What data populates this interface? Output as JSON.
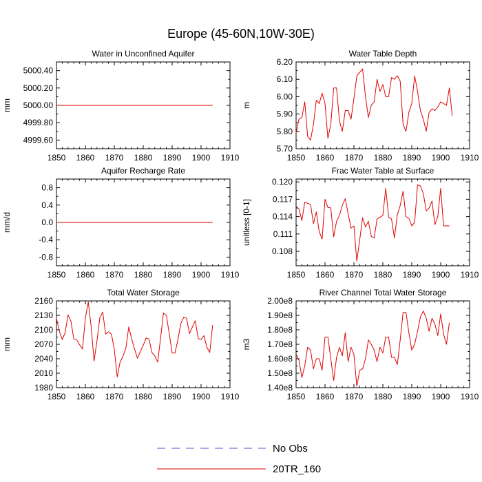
{
  "figure": {
    "title": "Europe (45-60N,10W-30E)"
  },
  "legend": {
    "items": [
      {
        "label": "No Obs",
        "color": "#5050c8",
        "style": "dashed"
      },
      {
        "label": "20TR_160",
        "color": "#e00000",
        "style": "solid"
      }
    ]
  },
  "chart_data": [
    {
      "type": "line",
      "title": "Water in Unconfined Aquifer",
      "ylabel": "mm",
      "xlabel": "",
      "xlim": [
        1850,
        1910
      ],
      "ylim": [
        4999.5,
        5000.5
      ],
      "xticks": [
        1850,
        1860,
        1870,
        1880,
        1890,
        1900,
        1910
      ],
      "yticks": [
        4999.6,
        4999.8,
        5000.0,
        5000.2,
        5000.4
      ],
      "ytick_labels": [
        "4999.60",
        "4999.80",
        "5000.00",
        "5000.20",
        "5000.40"
      ],
      "series": [
        {
          "name": "20TR_160",
          "x": [
            1850,
            1904
          ],
          "values": [
            5000.0,
            5000.0
          ]
        }
      ]
    },
    {
      "type": "line",
      "title": "Water Table Depth",
      "ylabel": "m",
      "xlabel": "",
      "xlim": [
        1850,
        1910
      ],
      "ylim": [
        5.7,
        6.2
      ],
      "xticks": [
        1850,
        1860,
        1870,
        1880,
        1890,
        1900,
        1910
      ],
      "yticks": [
        5.7,
        5.8,
        5.9,
        6.0,
        6.1,
        6.2
      ],
      "ytick_labels": [
        "5.70",
        "5.80",
        "5.90",
        "6.00",
        "6.10",
        "6.20"
      ],
      "series": [
        {
          "name": "20TR_160",
          "x_start": 1850,
          "values": [
            5.79,
            5.87,
            5.88,
            5.97,
            5.77,
            5.75,
            5.84,
            5.98,
            5.96,
            6.02,
            5.96,
            5.76,
            5.84,
            6.05,
            6.05,
            5.86,
            5.8,
            5.92,
            5.92,
            5.87,
            5.99,
            6.12,
            6.14,
            6.16,
            6.0,
            5.88,
            5.95,
            5.97,
            6.1,
            6.03,
            6.07,
            6.0,
            6.0,
            6.11,
            6.1,
            6.12,
            6.09,
            5.84,
            5.8,
            5.91,
            5.96,
            6.12,
            6.03,
            5.92,
            5.87,
            5.8,
            5.91,
            5.93,
            5.92,
            5.94,
            5.97,
            5.96,
            5.95,
            6.05,
            5.89
          ]
        }
      ]
    },
    {
      "type": "line",
      "title": "Aquifer Recharge Rate",
      "ylabel": "mm/d",
      "xlabel": "",
      "xlim": [
        1850,
        1910
      ],
      "ylim": [
        -1.0,
        1.0
      ],
      "xticks": [
        1850,
        1860,
        1870,
        1880,
        1890,
        1900,
        1910
      ],
      "yticks": [
        -0.8,
        -0.4,
        0.0,
        0.4,
        0.8
      ],
      "ytick_labels": [
        "-0.8",
        "-0.4",
        "0.0",
        "0.4",
        "0.8"
      ],
      "series": [
        {
          "name": "20TR_160",
          "x": [
            1850,
            1904
          ],
          "values": [
            0.0,
            0.0
          ]
        }
      ]
    },
    {
      "type": "line",
      "title": "Frac Water Table at Surface",
      "ylabel": "unitless [0-1]",
      "xlabel": "",
      "xlim": [
        1850,
        1910
      ],
      "ylim": [
        0.1055,
        0.1205
      ],
      "xticks": [
        1850,
        1860,
        1870,
        1880,
        1890,
        1900,
        1910
      ],
      "yticks": [
        0.108,
        0.111,
        0.114,
        0.117,
        0.12
      ],
      "ytick_labels": [
        "0.108",
        "0.111",
        "0.114",
        "0.117",
        "0.120"
      ],
      "series": [
        {
          "name": "20TR_160",
          "x_start": 1850,
          "values": [
            0.1158,
            0.1153,
            0.1133,
            0.1165,
            0.1163,
            0.1161,
            0.1128,
            0.1148,
            0.1114,
            0.1101,
            0.117,
            0.1156,
            0.1155,
            0.1105,
            0.1132,
            0.1142,
            0.116,
            0.1171,
            0.1145,
            0.112,
            0.1124,
            0.1063,
            0.11,
            0.1138,
            0.1122,
            0.1132,
            0.1106,
            0.1103,
            0.1136,
            0.1139,
            0.1142,
            0.1189,
            0.1139,
            0.1136,
            0.1103,
            0.1143,
            0.1159,
            0.1184,
            0.114,
            0.1137,
            0.1124,
            0.113,
            0.1195,
            0.1193,
            0.118,
            0.115,
            0.1155,
            0.1167,
            0.1126,
            0.114,
            0.1189,
            0.1124,
            0.1124,
            0.1124
          ]
        }
      ]
    },
    {
      "type": "line",
      "title": "Total Water Storage",
      "ylabel": "mm",
      "xlabel": "",
      "xlim": [
        1850,
        1910
      ],
      "ylim": [
        1980,
        2160
      ],
      "xticks": [
        1850,
        1860,
        1870,
        1880,
        1890,
        1900,
        1910
      ],
      "yticks": [
        1980,
        2010,
        2040,
        2070,
        2100,
        2130,
        2160
      ],
      "ytick_labels": [
        "1980",
        "2010",
        "2040",
        "2070",
        "2100",
        "2130",
        "2160"
      ],
      "series": [
        {
          "name": "20TR_160",
          "x_start": 1850,
          "values": [
            2124,
            2097,
            2080,
            2094,
            2131,
            2118,
            2081,
            2079,
            2069,
            2060,
            2125,
            2158,
            2106,
            2035,
            2077,
            2125,
            2137,
            2091,
            2096,
            2091,
            2060,
            2002,
            2033,
            2045,
            2062,
            2106,
            2081,
            2060,
            2041,
            2055,
            2068,
            2083,
            2081,
            2053,
            2046,
            2033,
            2083,
            2135,
            2130,
            2092,
            2052,
            2052,
            2080,
            2113,
            2126,
            2124,
            2092,
            2106,
            2119,
            2082,
            2080,
            2088,
            2064,
            2053,
            2110
          ]
        }
      ]
    },
    {
      "type": "line",
      "title": "River Channel Total Water Storage",
      "ylabel": "m3",
      "xlabel": "",
      "xlim": [
        1850,
        1910
      ],
      "ylim": [
        140000000,
        200000000
      ],
      "xticks": [
        1850,
        1860,
        1870,
        1880,
        1890,
        1900,
        1910
      ],
      "yticks": [
        140000000,
        150000000,
        160000000,
        170000000,
        180000000,
        190000000,
        200000000
      ],
      "ytick_labels": [
        "1.40e8",
        "1.50e8",
        "1.60e8",
        "1.70e8",
        "1.80e8",
        "1.90e8",
        "2.00e8"
      ],
      "series": [
        {
          "name": "20TR_160",
          "x_start": 1850,
          "values": [
            163000000,
            159000000,
            147000000,
            155000000,
            168000000,
            166000000,
            153000000,
            160000000,
            160000000,
            152000000,
            175000000,
            175000000,
            160000000,
            145000000,
            161000000,
            168000000,
            162000000,
            178000000,
            158000000,
            168000000,
            163000000,
            141000000,
            152000000,
            153000000,
            160000000,
            173000000,
            170000000,
            166000000,
            158000000,
            168000000,
            164000000,
            175000000,
            175000000,
            161000000,
            161000000,
            156000000,
            173000000,
            192000000,
            192000000,
            178000000,
            166000000,
            170000000,
            179000000,
            189000000,
            193000000,
            188000000,
            179000000,
            188000000,
            184000000,
            176000000,
            191000000,
            177000000,
            170000000,
            185000000
          ]
        }
      ]
    }
  ]
}
